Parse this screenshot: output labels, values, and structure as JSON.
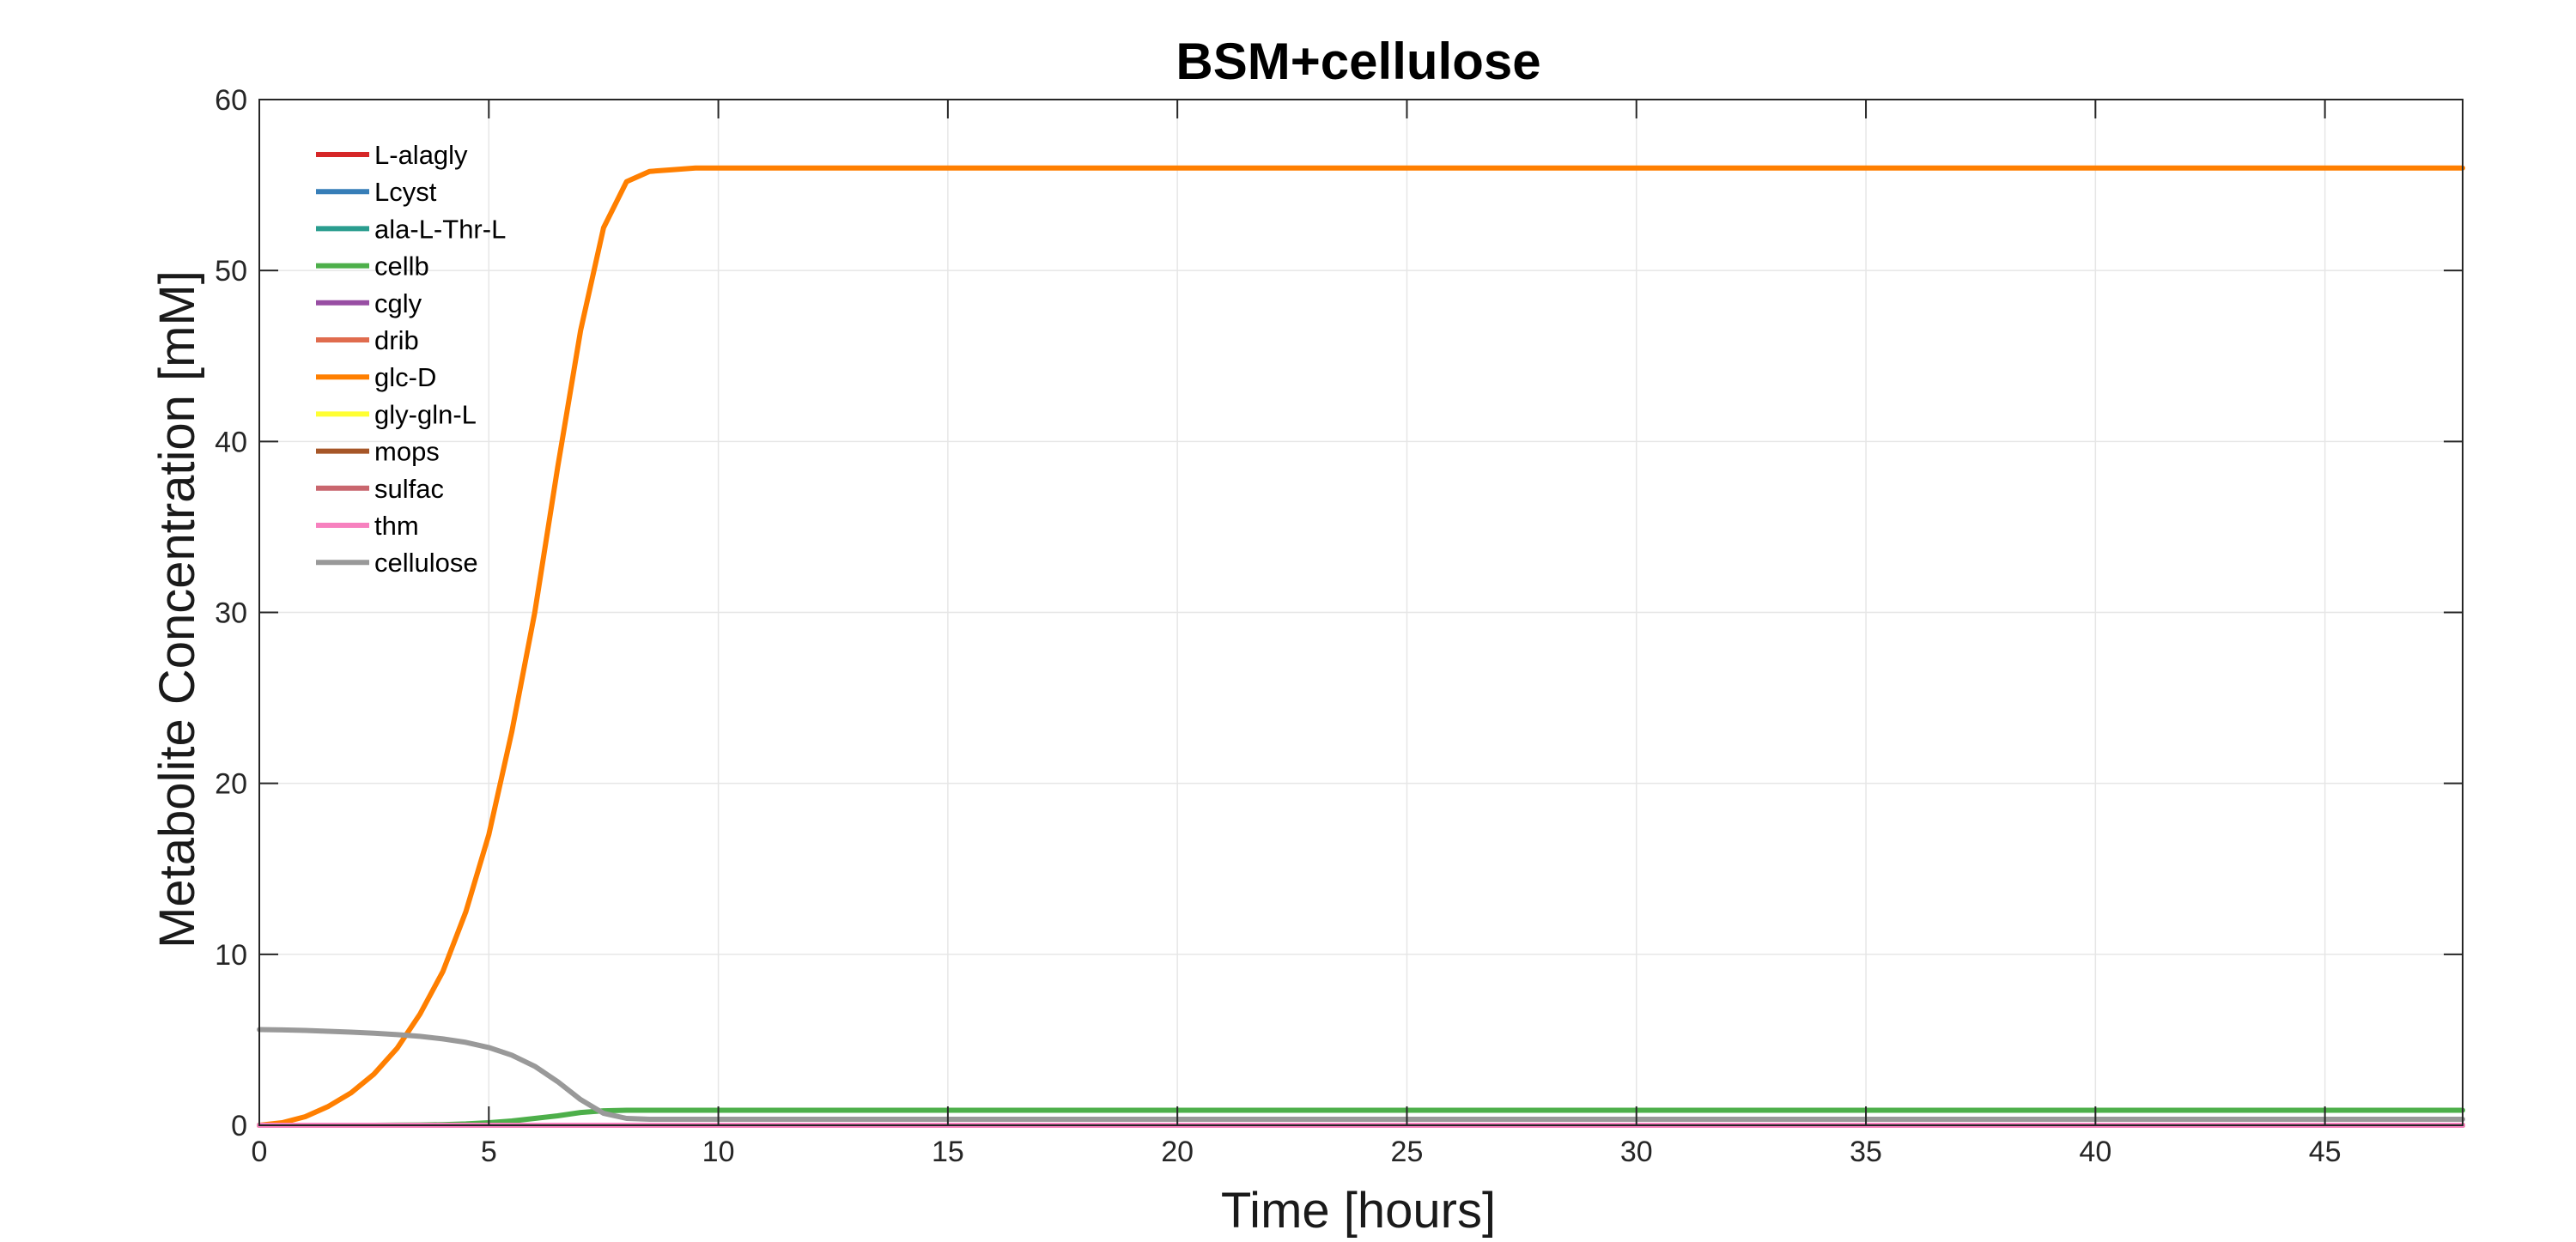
{
  "chart_data": {
    "type": "line",
    "title": "BSM+cellulose",
    "xlabel": "Time [hours]",
    "ylabel": "Metabolite Concentration [mM]",
    "xlim": [
      0,
      48
    ],
    "ylim": [
      0,
      60
    ],
    "xticks": [
      0,
      5,
      10,
      15,
      20,
      25,
      30,
      35,
      40,
      45
    ],
    "yticks": [
      0,
      10,
      20,
      30,
      40,
      50,
      60
    ],
    "grid": true,
    "legend_position": "top-left",
    "x": [
      0,
      0.5,
      1,
      1.5,
      2,
      2.5,
      3,
      3.5,
      4,
      4.5,
      5,
      5.5,
      6,
      6.5,
      7,
      7.5,
      8,
      8.5,
      9,
      9.5,
      10,
      12,
      15,
      20,
      25,
      30,
      35,
      40,
      45,
      48
    ],
    "series": [
      {
        "name": "L-alagly",
        "color": "#d62728",
        "values": [
          0,
          0,
          0,
          0,
          0,
          0,
          0,
          0,
          0,
          0,
          0,
          0,
          0,
          0,
          0,
          0,
          0,
          0,
          0,
          0,
          0,
          0,
          0,
          0,
          0,
          0,
          0,
          0,
          0,
          0
        ]
      },
      {
        "name": "Lcyst",
        "color": "#377eb8",
        "values": [
          0,
          0,
          0,
          0,
          0,
          0,
          0,
          0,
          0,
          0,
          0,
          0,
          0,
          0,
          0,
          0,
          0,
          0,
          0,
          0,
          0,
          0,
          0,
          0,
          0,
          0,
          0,
          0,
          0,
          0
        ]
      },
      {
        "name": "ala-L-Thr-L",
        "color": "#2a9d8f",
        "values": [
          0,
          0,
          0,
          0,
          0,
          0,
          0,
          0,
          0,
          0,
          0,
          0,
          0,
          0,
          0,
          0,
          0,
          0,
          0,
          0,
          0,
          0,
          0,
          0,
          0,
          0,
          0,
          0,
          0,
          0
        ]
      },
      {
        "name": "cellb",
        "color": "#4daf4a",
        "values": [
          0,
          0,
          0,
          0,
          0,
          0,
          0.01,
          0.02,
          0.04,
          0.08,
          0.15,
          0.25,
          0.4,
          0.55,
          0.75,
          0.85,
          0.88,
          0.88,
          0.88,
          0.88,
          0.88,
          0.88,
          0.88,
          0.88,
          0.88,
          0.88,
          0.88,
          0.88,
          0.88,
          0.88
        ]
      },
      {
        "name": "cgly",
        "color": "#984ea3",
        "values": [
          0,
          0,
          0,
          0,
          0,
          0,
          0,
          0,
          0,
          0,
          0,
          0,
          0,
          0,
          0,
          0,
          0,
          0,
          0,
          0,
          0,
          0,
          0,
          0,
          0,
          0,
          0,
          0,
          0,
          0
        ]
      },
      {
        "name": "drib",
        "color": "#e06c4e",
        "values": [
          0,
          0,
          0,
          0,
          0,
          0,
          0,
          0,
          0,
          0,
          0,
          0,
          0,
          0,
          0,
          0,
          0,
          0,
          0,
          0,
          0,
          0,
          0,
          0,
          0,
          0,
          0,
          0,
          0,
          0
        ]
      },
      {
        "name": "glc-D",
        "color": "#ff7f00",
        "values": [
          0,
          0.15,
          0.5,
          1.1,
          1.9,
          3.0,
          4.5,
          6.5,
          9.0,
          12.5,
          17.0,
          23.0,
          30.0,
          38.5,
          46.5,
          52.5,
          55.2,
          55.8,
          55.9,
          56.0,
          56.0,
          56.0,
          56.0,
          56.0,
          56.0,
          56.0,
          56.0,
          56.0,
          56.0,
          56.0
        ]
      },
      {
        "name": "gly-gln-L",
        "color": "#ffff33",
        "values": [
          0,
          0,
          0,
          0,
          0,
          0,
          0,
          0,
          0,
          0,
          0,
          0,
          0,
          0,
          0,
          0,
          0,
          0,
          0,
          0,
          0,
          0,
          0,
          0,
          0,
          0,
          0,
          0,
          0,
          0
        ]
      },
      {
        "name": "mops",
        "color": "#a65628",
        "values": [
          0,
          0,
          0,
          0,
          0,
          0,
          0,
          0,
          0,
          0,
          0,
          0,
          0,
          0,
          0,
          0,
          0,
          0,
          0,
          0,
          0,
          0,
          0,
          0,
          0,
          0,
          0,
          0,
          0,
          0
        ]
      },
      {
        "name": "sulfac",
        "color": "#c9666e",
        "values": [
          0,
          0,
          0,
          0,
          0,
          0,
          0,
          0,
          0,
          0,
          0,
          0,
          0,
          0,
          0,
          0,
          0,
          0,
          0,
          0,
          0,
          0,
          0,
          0,
          0,
          0,
          0,
          0,
          0,
          0
        ]
      },
      {
        "name": "thm",
        "color": "#f781bf",
        "values": [
          0,
          0,
          0,
          0,
          0,
          0,
          0,
          0,
          0,
          0,
          0,
          0,
          0,
          0,
          0,
          0,
          0,
          0,
          0,
          0,
          0,
          0,
          0,
          0,
          0,
          0,
          0,
          0,
          0,
          0
        ]
      },
      {
        "name": "cellulose",
        "color": "#999999",
        "values": [
          5.6,
          5.58,
          5.55,
          5.5,
          5.45,
          5.38,
          5.3,
          5.2,
          5.05,
          4.85,
          4.55,
          4.1,
          3.45,
          2.55,
          1.5,
          0.7,
          0.4,
          0.35,
          0.35,
          0.35,
          0.35,
          0.35,
          0.35,
          0.35,
          0.35,
          0.35,
          0.35,
          0.35,
          0.35,
          0.35
        ]
      }
    ]
  }
}
